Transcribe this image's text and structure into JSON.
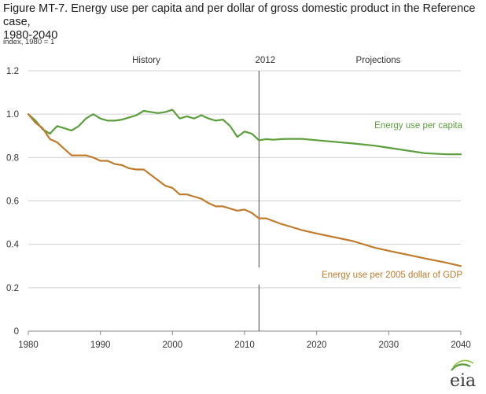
{
  "title_line1": "Figure MT-7. Energy use per capita and per dollar of gross domestic product in the Reference case,",
  "title_line2": "1980-2040",
  "unit_label": "index, 1980 = 1",
  "logo_text": "eia",
  "chart_data": {
    "type": "line",
    "title": "Figure MT-7. Energy use per capita and per dollar of gross domestic product in the Reference case, 1980-2040",
    "ylabel": "index, 1980 = 1",
    "xlabel": "",
    "xlim": [
      1980,
      2040
    ],
    "ylim": [
      0,
      1.2
    ],
    "x_ticks": [
      1980,
      1990,
      2000,
      2010,
      2020,
      2030,
      2040
    ],
    "y_ticks": [
      0,
      0.2,
      0.4,
      0.6,
      0.8,
      1.0,
      1.2
    ],
    "y_tick_labels": [
      "0",
      "0.2",
      "0.4",
      "0.6",
      "0.8",
      "1.0",
      "1.2"
    ],
    "grid": "horizontal",
    "divider": {
      "x": 2012,
      "label": "2012"
    },
    "region_labels": {
      "left": "History",
      "right": "Projections"
    },
    "colors": {
      "per_capita": "#5b9e3c",
      "per_gdp": "#c07b2d",
      "grid": "#d0d0d0",
      "divider": "#444444"
    },
    "series": [
      {
        "name": "Energy use per capita",
        "color": "#5b9e3c",
        "x": [
          1980,
          1981,
          1982,
          1983,
          1984,
          1985,
          1986,
          1987,
          1988,
          1989,
          1990,
          1991,
          1992,
          1993,
          1994,
          1995,
          1996,
          1997,
          1998,
          1999,
          2000,
          2001,
          2002,
          2003,
          2004,
          2005,
          2006,
          2007,
          2008,
          2009,
          2010,
          2011,
          2012,
          2013,
          2014,
          2015,
          2016,
          2017,
          2018,
          2020,
          2025,
          2028,
          2030,
          2035,
          2038,
          2040
        ],
        "values": [
          1.0,
          0.97,
          0.93,
          0.91,
          0.945,
          0.935,
          0.925,
          0.945,
          0.98,
          1.0,
          0.98,
          0.97,
          0.97,
          0.975,
          0.985,
          0.995,
          1.015,
          1.01,
          1.005,
          1.01,
          1.02,
          0.98,
          0.99,
          0.98,
          0.995,
          0.98,
          0.97,
          0.975,
          0.945,
          0.895,
          0.92,
          0.91,
          0.88,
          0.885,
          0.882,
          0.885,
          0.886,
          0.886,
          0.886,
          0.88,
          0.865,
          0.855,
          0.845,
          0.82,
          0.815,
          0.815
        ]
      },
      {
        "name": "Energy use per 2005 dollar of GDP",
        "color": "#c07b2d",
        "x": [
          1980,
          1981,
          1982,
          1983,
          1984,
          1985,
          1986,
          1987,
          1988,
          1989,
          1990,
          1991,
          1992,
          1993,
          1994,
          1995,
          1996,
          1997,
          1998,
          1999,
          2000,
          2001,
          2002,
          2003,
          2004,
          2005,
          2006,
          2007,
          2008,
          2009,
          2010,
          2011,
          2012,
          2013,
          2015,
          2018,
          2020,
          2025,
          2028,
          2030,
          2035,
          2038,
          2040
        ],
        "values": [
          1.0,
          0.96,
          0.935,
          0.885,
          0.87,
          0.84,
          0.81,
          0.81,
          0.81,
          0.8,
          0.785,
          0.785,
          0.77,
          0.765,
          0.75,
          0.745,
          0.745,
          0.72,
          0.695,
          0.67,
          0.66,
          0.63,
          0.63,
          0.62,
          0.61,
          0.59,
          0.575,
          0.575,
          0.565,
          0.555,
          0.56,
          0.545,
          0.52,
          0.52,
          0.495,
          0.465,
          0.45,
          0.415,
          0.385,
          0.37,
          0.335,
          0.315,
          0.3
        ]
      }
    ]
  }
}
